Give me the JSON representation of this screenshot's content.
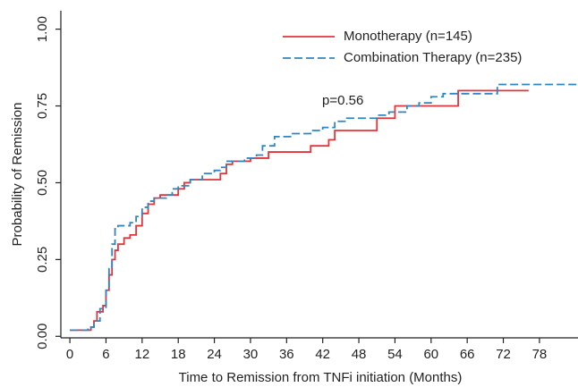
{
  "chart_data": {
    "type": "line",
    "step": "post",
    "xlabel": "Time to Remission from TNFi initiation (Months)",
    "ylabel": "Probability of Remission",
    "annotations": [
      "p=0.56"
    ],
    "legend": "upper right",
    "xlim": [
      -1.5,
      84.7
    ],
    "ylim": [
      -0.005,
      1.06
    ],
    "xticks": [
      0,
      6,
      12,
      18,
      24,
      30,
      36,
      42,
      48,
      54,
      60,
      66,
      72,
      78
    ],
    "yticks": [
      {
        "value": 0,
        "label": "0.00"
      },
      {
        "value": 0.25,
        "label": "0.25"
      },
      {
        "value": 0.5,
        "label": "0.50"
      },
      {
        "value": 0.75,
        "label": "0.75"
      },
      {
        "value": 1,
        "label": "1.00"
      }
    ],
    "series": [
      {
        "name": "Monotherapy (n=145)",
        "color": "#e0353b",
        "dash": false,
        "x": [
          0,
          3,
          3.5,
          4,
          4.5,
          5.5,
          6,
          6.5,
          7,
          7.5,
          8,
          9,
          10,
          11,
          12,
          13,
          14,
          15,
          18,
          19,
          20,
          25,
          26,
          27,
          30,
          33,
          40,
          43,
          44,
          51,
          54,
          64.5,
          76.2
        ],
        "values": [
          0.02,
          0.02,
          0.03,
          0.05,
          0.08,
          0.1,
          0.15,
          0.2,
          0.25,
          0.28,
          0.3,
          0.32,
          0.33,
          0.36,
          0.4,
          0.43,
          0.45,
          0.46,
          0.48,
          0.5,
          0.51,
          0.53,
          0.56,
          0.57,
          0.58,
          0.6,
          0.62,
          0.64,
          0.67,
          0.71,
          0.75,
          0.8,
          0.8
        ]
      },
      {
        "name": "Combination Therapy (n=235)",
        "color": "#2f86c3",
        "dash": true,
        "x": [
          0,
          3,
          4,
          5,
          6,
          6.5,
          7,
          7.5,
          8,
          10,
          11,
          12,
          13,
          14,
          16,
          17,
          18,
          20,
          22,
          24,
          25,
          26,
          29,
          31,
          32,
          34,
          37,
          40,
          42,
          44,
          46,
          51,
          53,
          56,
          58,
          60,
          62,
          71,
          84.7
        ],
        "values": [
          0.02,
          0.03,
          0.05,
          0.09,
          0.15,
          0.22,
          0.3,
          0.35,
          0.36,
          0.37,
          0.39,
          0.42,
          0.44,
          0.45,
          0.46,
          0.48,
          0.49,
          0.51,
          0.53,
          0.54,
          0.55,
          0.57,
          0.58,
          0.59,
          0.62,
          0.65,
          0.66,
          0.67,
          0.68,
          0.7,
          0.71,
          0.72,
          0.73,
          0.75,
          0.76,
          0.78,
          0.79,
          0.82,
          0.82
        ]
      }
    ]
  }
}
